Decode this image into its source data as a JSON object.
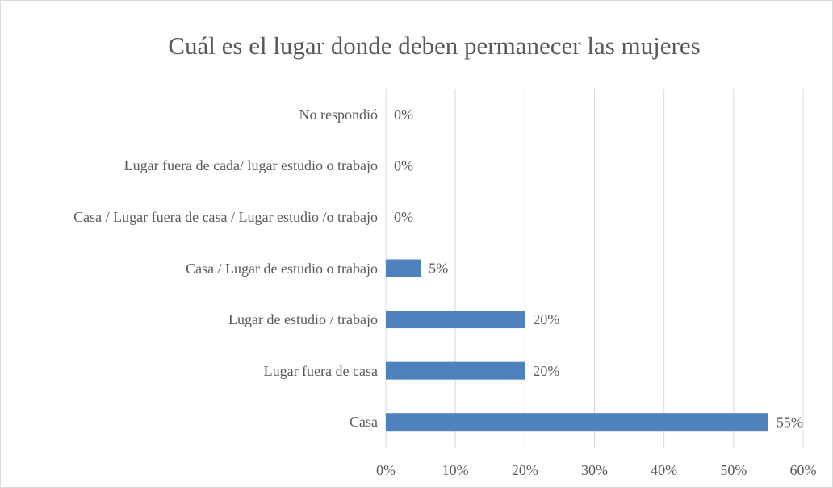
{
  "chart_data": {
    "type": "hbar",
    "title": "Cuál es el lugar donde deben permanecer las mujeres",
    "categories": [
      "No respondió",
      "Lugar fuera de cada/ lugar estudio o trabajo",
      "Casa / Lugar fuera de casa / Lugar estudio /o trabajo",
      "Casa / Lugar de estudio o trabajo",
      "Lugar de estudio / trabajo",
      "Lugar fuera de casa",
      "Casa"
    ],
    "values": [
      0,
      0,
      0,
      5,
      20,
      20,
      55
    ],
    "value_labels": [
      "0%",
      "0%",
      "0%",
      "5%",
      "20%",
      "20%",
      "55%"
    ],
    "color": "#4f81bd",
    "xlim": [
      0,
      60
    ],
    "xticks": [
      {
        "value": 0,
        "label": "0%"
      },
      {
        "value": 10,
        "label": "10%"
      },
      {
        "value": 20,
        "label": "20%"
      },
      {
        "value": 30,
        "label": "30%"
      },
      {
        "value": 40,
        "label": "40%"
      },
      {
        "value": 50,
        "label": "50%"
      },
      {
        "value": 60,
        "label": "60%"
      }
    ],
    "grid": true
  }
}
